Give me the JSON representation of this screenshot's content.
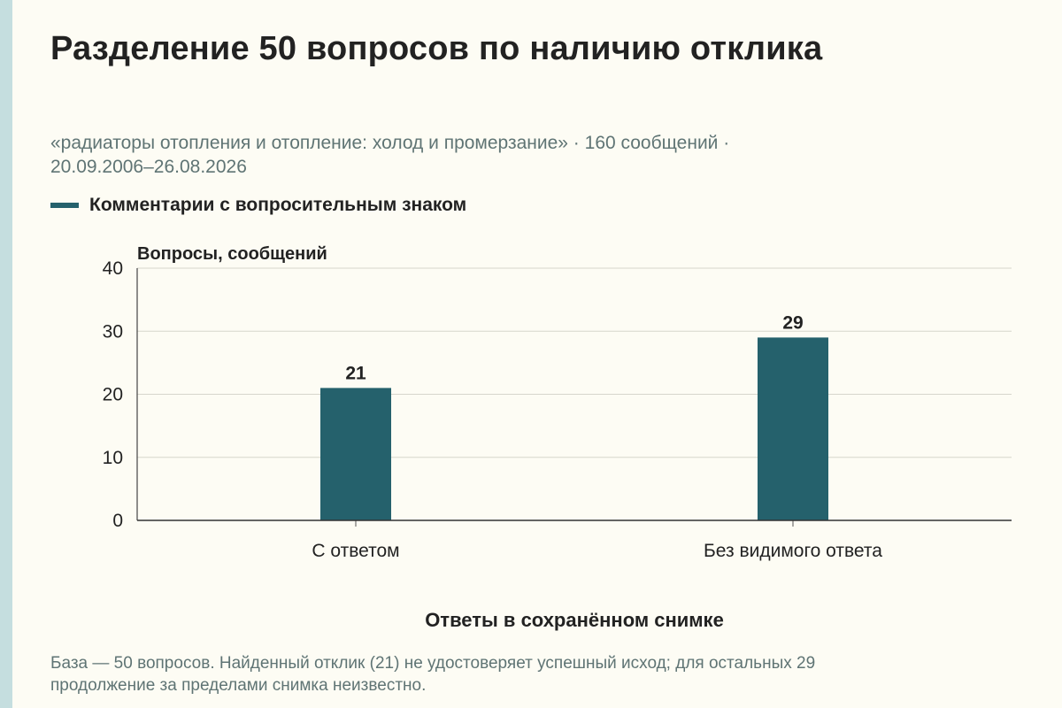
{
  "header": {
    "title": "Разделение 50 вопросов по наличию отклика",
    "subtitle_line1": "«радиаторы отопления и отопление: холод и промерзание» · 160 сообщений ·",
    "subtitle_line2": "20.09.2006–26.08.2026"
  },
  "legend": {
    "label": "Комментарии с вопросительным знаком",
    "color": "#25616c"
  },
  "footnote": {
    "line1": "База — 50 вопросов. Найденный отклик (21) не удостоверяет успешный исход; для остальных 29",
    "line2": "продолжение за пределами снимка неизвестно."
  },
  "chart_data": {
    "type": "bar",
    "categories": [
      "С ответом",
      "Без видимого ответа"
    ],
    "series": [
      {
        "name": "Комментарии с вопросительным знаком",
        "values": [
          21,
          29
        ],
        "color": "#25616c"
      }
    ],
    "ylabel": "Вопросы, сообщений",
    "xlabel": "Ответы в сохранённом снимке",
    "ylim": [
      0,
      40
    ],
    "yticks": [
      0,
      10,
      20,
      30,
      40
    ],
    "grid": true,
    "legend_position": "top-left",
    "data_labels": true
  }
}
